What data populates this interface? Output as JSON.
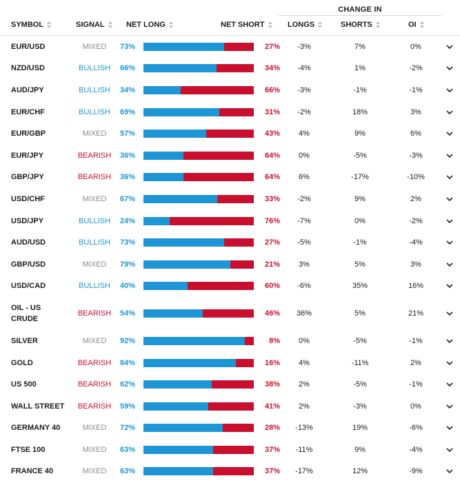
{
  "header": {
    "group_label": "CHANGE IN",
    "columns": {
      "symbol": "SYMBOL",
      "signal": "SIGNAL",
      "net_long": "NET LONG",
      "net_short": "NET SHORT",
      "longs": "LONGS",
      "shorts": "SHORTS",
      "oi": "OI"
    }
  },
  "colors": {
    "long": "#1e96d6",
    "short": "#c8102e",
    "mixed": "#8c8c8c"
  },
  "rows": [
    {
      "symbol": "EUR/USD",
      "signal": "MIXED",
      "net_long": "73%",
      "net_short": "27%",
      "longs": "-3%",
      "shorts": "7%",
      "oi": "0%",
      "long_fraction": 0.73
    },
    {
      "symbol": "NZD/USD",
      "signal": "BULLISH",
      "net_long": "66%",
      "net_short": "34%",
      "longs": "-4%",
      "shorts": "1%",
      "oi": "-2%",
      "long_fraction": 0.66
    },
    {
      "symbol": "AUD/JPY",
      "signal": "BULLISH",
      "net_long": "34%",
      "net_short": "66%",
      "longs": "-3%",
      "shorts": "-1%",
      "oi": "-1%",
      "long_fraction": 0.34
    },
    {
      "symbol": "EUR/CHF",
      "signal": "BULLISH",
      "net_long": "69%",
      "net_short": "31%",
      "longs": "-2%",
      "shorts": "18%",
      "oi": "3%",
      "long_fraction": 0.69
    },
    {
      "symbol": "EUR/GBP",
      "signal": "MIXED",
      "net_long": "57%",
      "net_short": "43%",
      "longs": "4%",
      "shorts": "9%",
      "oi": "6%",
      "long_fraction": 0.57
    },
    {
      "symbol": "EUR/JPY",
      "signal": "BEARISH",
      "net_long": "36%",
      "net_short": "64%",
      "longs": "0%",
      "shorts": "-5%",
      "oi": "-3%",
      "long_fraction": 0.36
    },
    {
      "symbol": "GBP/JPY",
      "signal": "BEARISH",
      "net_long": "36%",
      "net_short": "64%",
      "longs": "6%",
      "shorts": "-17%",
      "oi": "-10%",
      "long_fraction": 0.36
    },
    {
      "symbol": "USD/CHF",
      "signal": "MIXED",
      "net_long": "67%",
      "net_short": "33%",
      "longs": "-2%",
      "shorts": "9%",
      "oi": "2%",
      "long_fraction": 0.67
    },
    {
      "symbol": "USD/JPY",
      "signal": "BULLISH",
      "net_long": "24%",
      "net_short": "76%",
      "longs": "-7%",
      "shorts": "0%",
      "oi": "-2%",
      "long_fraction": 0.24
    },
    {
      "symbol": "AUD/USD",
      "signal": "BULLISH",
      "net_long": "73%",
      "net_short": "27%",
      "longs": "-5%",
      "shorts": "-1%",
      "oi": "-4%",
      "long_fraction": 0.73
    },
    {
      "symbol": "GBP/USD",
      "signal": "MIXED",
      "net_long": "79%",
      "net_short": "21%",
      "longs": "3%",
      "shorts": "5%",
      "oi": "3%",
      "long_fraction": 0.79
    },
    {
      "symbol": "USD/CAD",
      "signal": "BULLISH",
      "net_long": "40%",
      "net_short": "60%",
      "longs": "-6%",
      "shorts": "35%",
      "oi": "16%",
      "long_fraction": 0.4
    },
    {
      "symbol": "OIL - US CRUDE",
      "signal": "BEARISH",
      "net_long": "54%",
      "net_short": "46%",
      "longs": "36%",
      "shorts": "5%",
      "oi": "21%",
      "long_fraction": 0.54
    },
    {
      "symbol": "SILVER",
      "signal": "MIXED",
      "net_long": "92%",
      "net_short": "8%",
      "longs": "0%",
      "shorts": "-5%",
      "oi": "-1%",
      "long_fraction": 0.92
    },
    {
      "symbol": "GOLD",
      "signal": "BEARISH",
      "net_long": "84%",
      "net_short": "16%",
      "longs": "4%",
      "shorts": "-11%",
      "oi": "2%",
      "long_fraction": 0.84
    },
    {
      "symbol": "US 500",
      "signal": "BEARISH",
      "net_long": "62%",
      "net_short": "38%",
      "longs": "2%",
      "shorts": "-5%",
      "oi": "-1%",
      "long_fraction": 0.62
    },
    {
      "symbol": "WALL STREET",
      "signal": "BEARISH",
      "net_long": "59%",
      "net_short": "41%",
      "longs": "2%",
      "shorts": "-3%",
      "oi": "0%",
      "long_fraction": 0.59
    },
    {
      "symbol": "GERMANY 40",
      "signal": "MIXED",
      "net_long": "72%",
      "net_short": "28%",
      "longs": "-13%",
      "shorts": "19%",
      "oi": "-6%",
      "long_fraction": 0.72
    },
    {
      "symbol": "FTSE 100",
      "signal": "MIXED",
      "net_long": "63%",
      "net_short": "37%",
      "longs": "-11%",
      "shorts": "9%",
      "oi": "-4%",
      "long_fraction": 0.63
    },
    {
      "symbol": "FRANCE 40",
      "signal": "MIXED",
      "net_long": "63%",
      "net_short": "37%",
      "longs": "-17%",
      "shorts": "12%",
      "oi": "-9%",
      "long_fraction": 0.63
    }
  ]
}
